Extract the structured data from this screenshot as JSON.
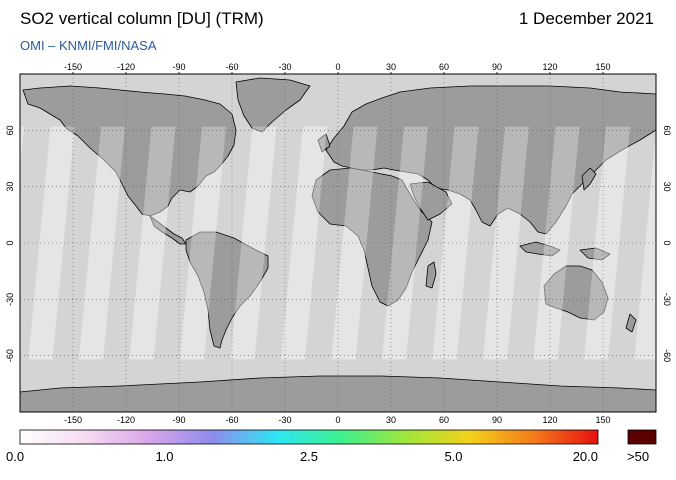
{
  "title": "SO2 vertical column [DU] (TRM)",
  "date": "1 December 2021",
  "credit": "OMI  –  KNMI/FMI/NASA",
  "map": {
    "lon_range": [
      -180,
      180
    ],
    "lat_range": [
      -90,
      90
    ],
    "lon_ticks": [
      -150,
      -120,
      -90,
      -60,
      -30,
      0,
      30,
      60,
      90,
      120,
      150
    ],
    "lat_ticks": [
      60,
      30,
      0,
      -30,
      -60
    ],
    "colors": {
      "land": "#9c9c9c",
      "no_data": "#d4d4d4",
      "swath": "#ffffff",
      "coast": "#000000"
    }
  },
  "colorbar": {
    "labels": [
      "0.0",
      "1.0",
      "2.5",
      "5.0",
      "20.0"
    ],
    "overflow_label": ">50",
    "overflow_color": "#5a0000",
    "stops": [
      "#ffffff",
      "#f6dcf2",
      "#d9a6ea",
      "#8e8cec",
      "#2fe6f4",
      "#3df08e",
      "#9fe63c",
      "#f2d21a",
      "#f57a1a",
      "#e61010"
    ]
  }
}
